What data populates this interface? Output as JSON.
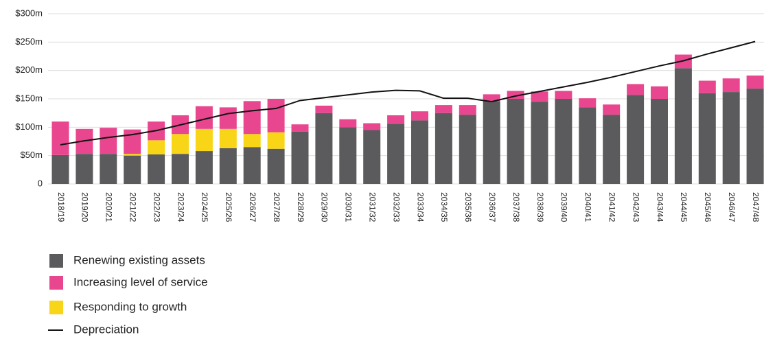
{
  "chart_data": {
    "type": "bar",
    "stacked": true,
    "categories": [
      "2018/19",
      "2019/20",
      "2020/21",
      "2021/22",
      "2022/23",
      "2023/24",
      "2024/25",
      "2025/26",
      "2026/27",
      "2027/28",
      "2028/29",
      "2029/30",
      "2030/31",
      "2031/32",
      "2032/33",
      "2033/34",
      "2034/35",
      "2035/36",
      "2036/37",
      "2037/38",
      "2038/39",
      "2039/40",
      "2040/41",
      "2041/42",
      "2042/43",
      "2043/44",
      "2044/45",
      "2045/46",
      "2046/47",
      "2047/48"
    ],
    "series": [
      {
        "name": "Renewing existing assets",
        "color": "#5b5b5d",
        "values": [
          51,
          53,
          53,
          50,
          52,
          53,
          58,
          63,
          65,
          62,
          92,
          125,
          100,
          95,
          106,
          112,
          125,
          122,
          146,
          150,
          145,
          150,
          135,
          122,
          157,
          150,
          204,
          160,
          162,
          168
        ]
      },
      {
        "name": "Increasing level of service",
        "color": "#e8478f",
        "values": [
          59,
          44,
          46,
          43,
          33,
          33,
          40,
          38,
          58,
          59,
          13,
          13,
          14,
          12,
          15,
          16,
          14,
          17,
          12,
          14,
          18,
          14,
          16,
          18,
          19,
          22,
          24,
          22,
          24,
          23
        ]
      },
      {
        "name": "Responding to growth",
        "color": "#f8d617",
        "values": [
          0,
          0,
          0,
          3,
          25,
          35,
          39,
          34,
          23,
          29,
          0,
          0,
          0,
          0,
          0,
          0,
          0,
          0,
          0,
          0,
          0,
          0,
          0,
          0,
          0,
          0,
          0,
          0,
          0,
          0
        ]
      },
      {
        "name": "Depreciation",
        "color": "#111111",
        "type": "line",
        "values": [
          69,
          76,
          82,
          87,
          94,
          104,
          114,
          124,
          129,
          133,
          147,
          152,
          157,
          162,
          165,
          164,
          151,
          151,
          145,
          155,
          163,
          171,
          179,
          188,
          198,
          208,
          217,
          229,
          240,
          251
        ]
      }
    ],
    "ylim": [
      0,
      300
    ],
    "yticks": [
      0,
      {
        "value": 50,
        "label": "$50m"
      },
      {
        "value": 100,
        "label": "$100m"
      },
      {
        "value": 150,
        "label": "$150m"
      },
      {
        "value": 200,
        "label": "$200m"
      },
      {
        "value": 250,
        "label": "$250m"
      },
      {
        "value": 300,
        "label": "$300m"
      }
    ],
    "grid": true
  }
}
